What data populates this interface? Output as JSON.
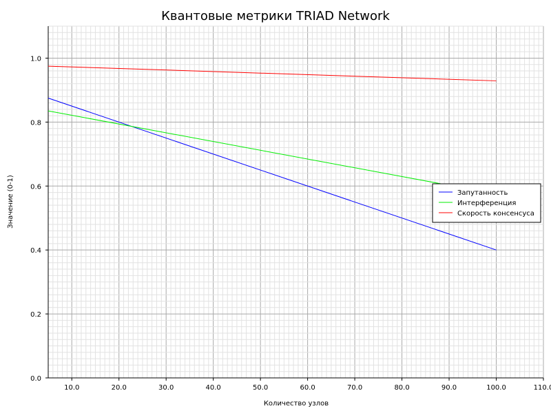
{
  "chart_data": {
    "type": "line",
    "title": "Квантовые метрики TRIAD Network",
    "xlabel": "Количество узлов",
    "ylabel": "Значение (0-1)",
    "xlim": [
      5,
      110
    ],
    "ylim": [
      0,
      1.1
    ],
    "x_ticks": [
      "10.0",
      "20.0",
      "30.0",
      "40.0",
      "50.0",
      "60.0",
      "70.0",
      "80.0",
      "90.0",
      "100.0",
      "110.0"
    ],
    "y_ticks": [
      "0.0",
      "0.2",
      "0.4",
      "0.6",
      "0.8",
      "1.0"
    ],
    "grid": true,
    "legend_position": "right",
    "series": [
      {
        "name": "Запутанность",
        "color": "#0000ff",
        "x": [
          5,
          100
        ],
        "y": [
          0.875,
          0.4
        ]
      },
      {
        "name": "Интерференция",
        "color": "#00ee00",
        "x": [
          5,
          100
        ],
        "y": [
          0.835,
          0.575
        ]
      },
      {
        "name": "Скорость консенсуса",
        "color": "#ff0000",
        "x": [
          5,
          100
        ],
        "y": [
          0.975,
          0.929
        ]
      }
    ]
  }
}
